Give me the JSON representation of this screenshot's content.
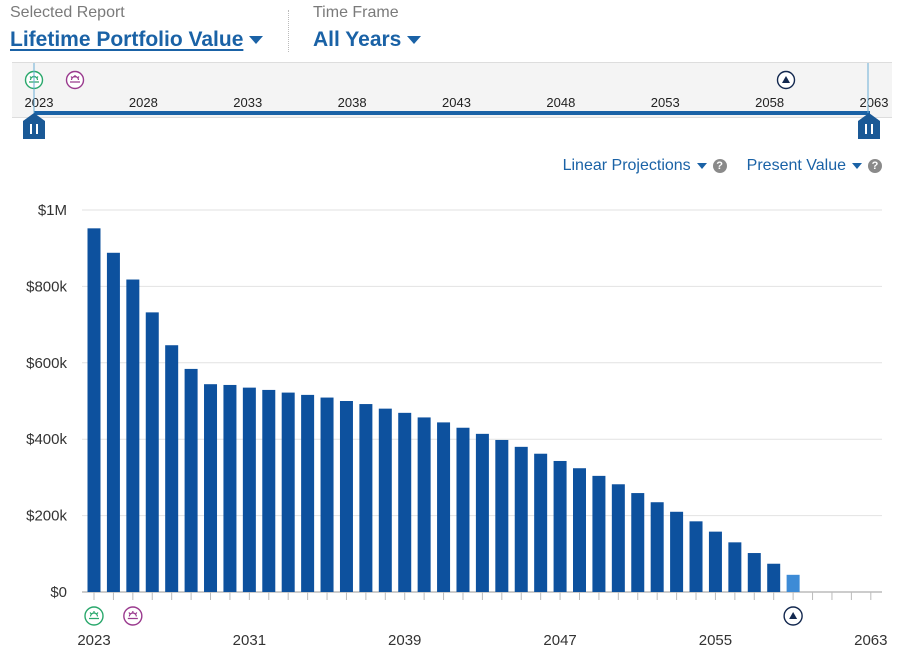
{
  "header": {
    "report_label": "Selected Report",
    "report_value": "Lifetime Portfolio Value",
    "timeframe_label": "Time Frame",
    "timeframe_value": "All Years"
  },
  "timeline": {
    "ticks": [
      "2023",
      "2028",
      "2033",
      "2038",
      "2043",
      "2048",
      "2053",
      "2058",
      "2063"
    ]
  },
  "options": {
    "projection": "Linear Projections",
    "value_mode": "Present Value",
    "help_glyph": "?"
  },
  "colors": {
    "bar": "#0d519e",
    "bar_last": "#3d8bd6",
    "accent": "#1a62a6",
    "event_green": "#2aa86c",
    "event_purple": "#9a3a8e",
    "event_navy": "#13284f"
  },
  "chart_data": {
    "type": "bar",
    "title": "Lifetime Portfolio Value",
    "xlabel": "",
    "ylabel": "",
    "categories": [
      2023,
      2024,
      2025,
      2026,
      2027,
      2028,
      2029,
      2030,
      2031,
      2032,
      2033,
      2034,
      2035,
      2036,
      2037,
      2038,
      2039,
      2040,
      2041,
      2042,
      2043,
      2044,
      2045,
      2046,
      2047,
      2048,
      2049,
      2050,
      2051,
      2052,
      2053,
      2054,
      2055,
      2056,
      2057,
      2058,
      2059,
      2060,
      2061,
      2062,
      2063
    ],
    "values": [
      952000,
      888000,
      818000,
      732000,
      646000,
      584000,
      544000,
      542000,
      535000,
      529000,
      522000,
      516000,
      509000,
      500000,
      492000,
      480000,
      469000,
      457000,
      444000,
      430000,
      414000,
      398000,
      380000,
      362000,
      343000,
      324000,
      304000,
      282000,
      259000,
      235000,
      210000,
      185000,
      158000,
      130000,
      102000,
      74000,
      45000,
      0,
      0,
      0,
      0
    ],
    "ylim": [
      0,
      1000000
    ],
    "y_ticks": [
      0,
      200000,
      400000,
      600000,
      800000,
      1000000
    ],
    "y_tick_labels": [
      "$0",
      "$200k",
      "$400k",
      "$600k",
      "$800k",
      "$1M"
    ],
    "x_tick_labels": [
      "2023",
      "2031",
      "2039",
      "2047",
      "2055",
      "2063"
    ],
    "highlight_last_value_year": 2059,
    "events": [
      {
        "name": "retirement",
        "year": 2023,
        "icon": "sunrise-icon",
        "color": "#2aa86c"
      },
      {
        "name": "social-security",
        "year": 2025,
        "icon": "sunburst-icon",
        "color": "#9a3a8e"
      },
      {
        "name": "end-of-plan",
        "year": 2059,
        "icon": "triangle-icon",
        "color": "#13284f"
      }
    ]
  }
}
